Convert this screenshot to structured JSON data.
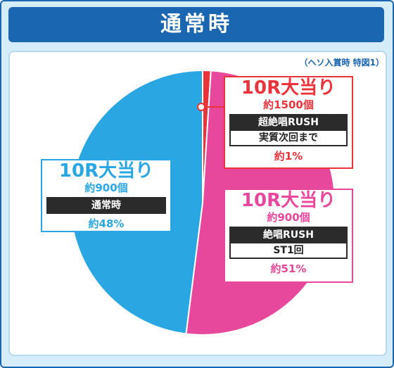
{
  "header": {
    "title": "通常時"
  },
  "note": "（ヘソ入賞時 特図1）",
  "colors": {
    "red": "#e8343a",
    "pink": "#e8489b",
    "blue": "#2aa6e3",
    "dark": "#2b2b2b",
    "header": "#1a66b0"
  },
  "chart_data": {
    "type": "pie",
    "title": "通常時",
    "slices": [
      {
        "name": "10R大当り 約1500個 超絶唱RUSH 実質次回まで",
        "value": 1,
        "label": "約1%",
        "color": "#e8343a"
      },
      {
        "name": "10R大当り 約900個 絶唱RUSH ST1回",
        "value": 51,
        "label": "約51%",
        "color": "#e8489b"
      },
      {
        "name": "10R大当り 約900個 通常時",
        "value": 48,
        "label": "約48%",
        "color": "#2aa6e3"
      }
    ]
  },
  "labels": {
    "red": {
      "title": "10R大当り",
      "balls": "約1500個",
      "mode": "超絶唱RUSH",
      "detail": "実質次回まで",
      "pct": "約1%"
    },
    "pink": {
      "title": "10R大当り",
      "balls": "約900個",
      "mode": "絶唱RUSH",
      "detail": "ST1回",
      "pct": "約51%"
    },
    "blue": {
      "title": "10R大当り",
      "balls": "約900個",
      "mode": "通常時",
      "pct": "約48%"
    }
  }
}
